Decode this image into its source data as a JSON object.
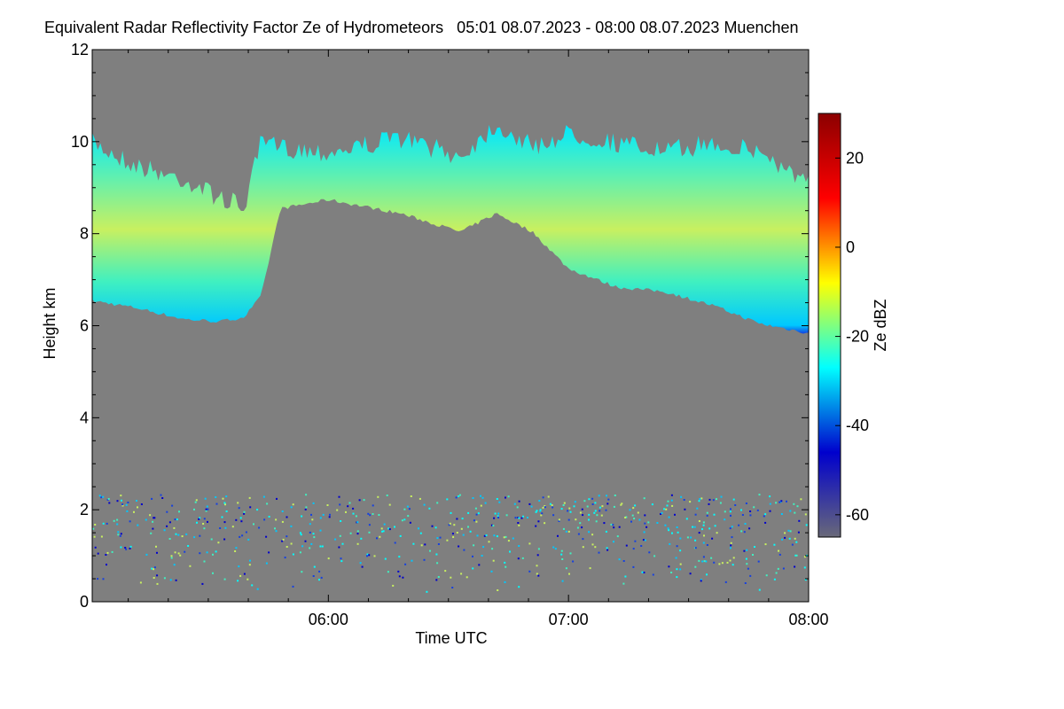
{
  "title": "Equivalent Radar Reflectivity Factor Ze of Hydrometeors   05:01 08.07.2023 - 08:00 08.07.2023 Muenchen",
  "chart_data": {
    "type": "heatmap",
    "xlabel": "Time UTC",
    "ylabel": "Height km",
    "xlim_hours": [
      5.0167,
      8.0
    ],
    "ylim": [
      0,
      12
    ],
    "x_ticks": [
      "06:00",
      "07:00",
      "08:00"
    ],
    "x_tick_values_hours": [
      6,
      7,
      8
    ],
    "y_ticks": [
      0,
      2,
      4,
      6,
      8,
      10,
      12
    ],
    "colorbar": {
      "label": "Ze dBZ",
      "range": [
        -65,
        30
      ],
      "ticks": [
        20,
        0,
        -20,
        -40,
        -60
      ],
      "tick_labels": [
        "20",
        "0",
        "-20",
        "-40",
        "-60"
      ],
      "colormap_stops": [
        "#696979",
        "#0000cd",
        "#00ffff",
        "#ffff00",
        "#ff0000",
        "#8b0000"
      ]
    },
    "background_color": "#7f7f7f",
    "upper_cloud_layer": {
      "time_hours": [
        5.02,
        5.2,
        5.4,
        5.55,
        5.65,
        5.72,
        5.8,
        6.0,
        6.3,
        6.55,
        6.7,
        6.85,
        7.0,
        7.2,
        7.4,
        7.6,
        7.8,
        8.0
      ],
      "base_km": [
        6.5,
        6.35,
        6.1,
        6.05,
        6.15,
        6.6,
        8.5,
        8.7,
        8.4,
        8.0,
        8.4,
        8.0,
        7.2,
        6.8,
        6.7,
        6.4,
        6.0,
        5.8
      ],
      "top_km": [
        10.2,
        9.7,
        9.4,
        9.0,
        8.8,
        10.2,
        10.1,
        10.0,
        10.3,
        9.9,
        10.6,
        10.1,
        10.4,
        10.2,
        10.0,
        10.2,
        10.0,
        9.3
      ],
      "typical_ze_dbz": -15
    },
    "low_clutter_layer": {
      "height_range_km": [
        0.2,
        2.35
      ],
      "typical_ze_dbz": -35
    }
  }
}
